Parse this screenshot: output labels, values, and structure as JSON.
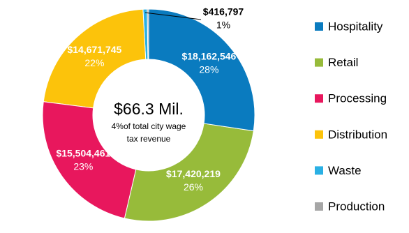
{
  "chart_data": {
    "type": "donut",
    "center_title": "$66.3 Mil.",
    "center_lines": [
      "4%of total city wage",
      "tax revenue"
    ],
    "categories": [
      "Hospitality",
      "Retail",
      "Processing",
      "Distribution",
      "Waste",
      "Production"
    ],
    "values": [
      18162546,
      17420219,
      15504461,
      14671745,
      416797,
      150000
    ],
    "value_labels": [
      "$18,162,546",
      "$17,420,219",
      "$15,504,461",
      "$14,671,745",
      "$416,797",
      null
    ],
    "percents": [
      28,
      26,
      23,
      22,
      1,
      null
    ],
    "percent_labels": [
      "28%",
      "26%",
      "23%",
      "22%",
      "1%",
      null
    ],
    "colors": [
      "#0a7bbf",
      "#97bb3a",
      "#e8175d",
      "#fcc30b",
      "#2ab0e4",
      "#a6a6a6"
    ],
    "legend": "right"
  }
}
